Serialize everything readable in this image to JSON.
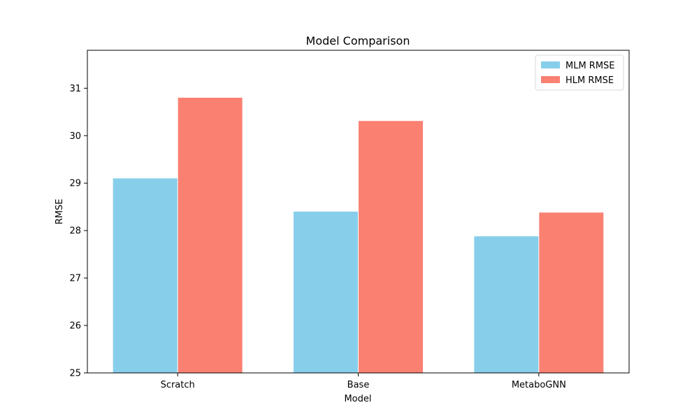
{
  "chart_data": {
    "type": "bar",
    "title": "Model Comparison",
    "xlabel": "Model",
    "ylabel": "RMSE",
    "categories": [
      "Scratch",
      "Base",
      "MetaboGNN"
    ],
    "series": [
      {
        "name": "MLM RMSE",
        "color": "#87CEEB",
        "values": [
          29.1,
          28.4,
          27.88
        ]
      },
      {
        "name": "HLM RMSE",
        "color": "#FA8072",
        "values": [
          30.8,
          30.31,
          28.38
        ]
      }
    ],
    "ylim": [
      25,
      31.8
    ],
    "yticks": [
      25,
      26,
      27,
      28,
      29,
      30,
      31
    ],
    "legend": "top-right",
    "grid": false
  }
}
